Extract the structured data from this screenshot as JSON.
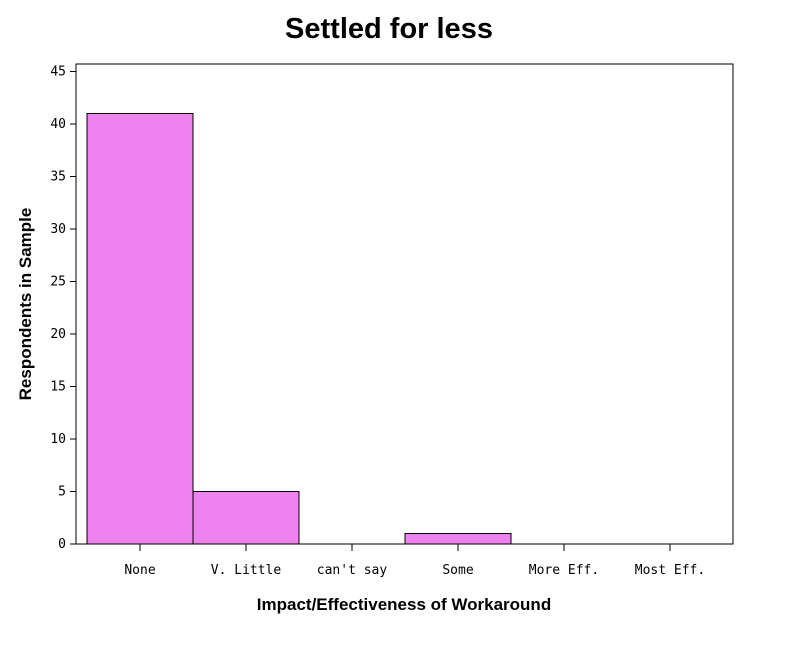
{
  "chart_data": {
    "type": "bar",
    "title": "Settled for less",
    "xlabel": "Impact/Effectiveness of Workaround",
    "ylabel": "Respondents in Sample",
    "categories": [
      "None",
      "V. Little",
      "can't say",
      "Some",
      "More Eff.",
      "Most Eff."
    ],
    "values": [
      41,
      5,
      0,
      1,
      0,
      0
    ],
    "ylim": [
      0,
      45
    ],
    "yticks": [
      0,
      5,
      10,
      15,
      20,
      25,
      30,
      35,
      40,
      45
    ],
    "grid": false,
    "legend": "none",
    "bar_color": "#ee82ee",
    "bar_edge": "#000000"
  }
}
